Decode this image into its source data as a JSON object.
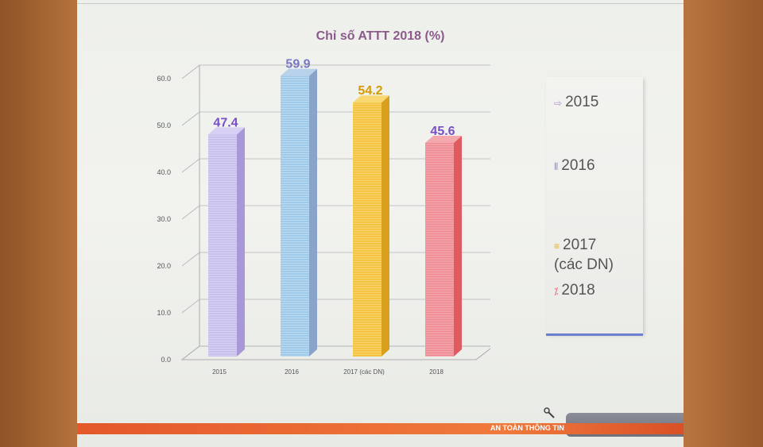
{
  "chart_data": {
    "type": "bar",
    "title": "Chỉ số ATTT 2018 (%)",
    "categories": [
      "2015",
      "2016",
      "2017  (các DN)",
      "2018"
    ],
    "values": [
      47.4,
      59.9,
      54.2,
      45.6
    ],
    "value_labels": [
      "47.4",
      "59.9",
      "54.2",
      "45.6"
    ],
    "ylim": [
      0,
      60
    ],
    "yticks": [
      "0.0",
      "10.0",
      "20.0",
      "30.0",
      "40.0",
      "50.0",
      "60.0"
    ],
    "legend_position": "right",
    "legend": [
      {
        "marker": "⇨",
        "label": "2015"
      },
      {
        "marker": "⦀",
        "label": "2016"
      },
      {
        "marker": "≡",
        "label": "2017\n(các DN)"
      },
      {
        "marker": "⁒",
        "label": "2018"
      }
    ],
    "colors": {
      "bar_fronts": [
        "#c8c0ec",
        "#9ec9ea",
        "#f4c23a",
        "#f08a92"
      ],
      "bar_sides": [
        "#a898d8",
        "#8aa3c8",
        "#d9a01e",
        "#e05a62"
      ],
      "bar_tops": [
        "#d8d0f4",
        "#b8d2ec",
        "#f8d870",
        "#f4a8ae"
      ],
      "value_label_colors": [
        "#7a4fc6",
        "#7a78c6",
        "#d49a00",
        "#7a4fc6"
      ],
      "legend_markers": [
        "#b090d0",
        "#8a8ad0",
        "#e0b020",
        "#e06070"
      ]
    }
  },
  "footer": {
    "label": "AN TOÀN THÔNG TIN"
  }
}
